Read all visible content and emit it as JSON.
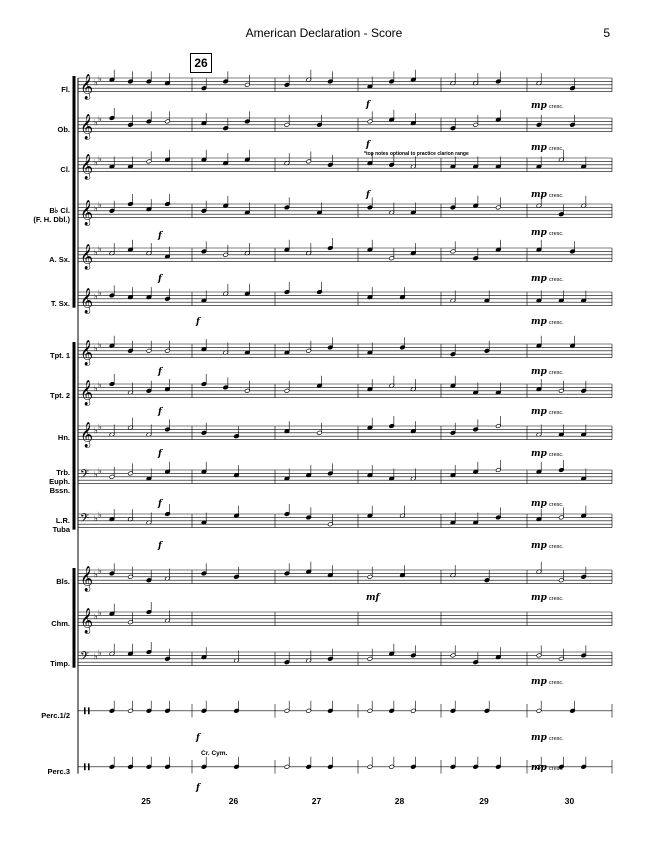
{
  "header": {
    "title": "American Declaration - Score",
    "page_number": "5"
  },
  "rehearsal_mark": "26",
  "optional_note": "*top notes optional to practice clarion range",
  "percussion_note": "Cr. Cym.",
  "measure_numbers": [
    "25",
    "26",
    "27",
    "28",
    "29",
    "30"
  ],
  "instruments": [
    {
      "label": "Fl.",
      "clef": "treble"
    },
    {
      "label": "Ob.",
      "clef": "treble"
    },
    {
      "label": "Cl.",
      "clef": "treble"
    },
    {
      "label": "B♭ Cl.\n(F. H. Dbl.)",
      "clef": "treble"
    },
    {
      "label": "A. Sx.",
      "clef": "treble"
    },
    {
      "label": "T. Sx.",
      "clef": "treble"
    },
    {
      "label": "Tpt. 1",
      "clef": "treble"
    },
    {
      "label": "Tpt. 2",
      "clef": "treble"
    },
    {
      "label": "Hn.",
      "clef": "treble"
    },
    {
      "label": "Trb.\nEuph.\nBssn.",
      "clef": "bass"
    },
    {
      "label": "L.R.\nTuba",
      "clef": "bass"
    },
    {
      "label": "Bls.",
      "clef": "treble"
    },
    {
      "label": "Chm.",
      "clef": "treble"
    },
    {
      "label": "Timp.",
      "clef": "bass"
    },
    {
      "label": "Perc.1/2",
      "clef": "perc"
    },
    {
      "label": "Perc.3",
      "clef": "perc"
    }
  ],
  "dynamics": {
    "f": "f",
    "mf": "mf",
    "mp": "mp",
    "cresc": "cresc."
  }
}
